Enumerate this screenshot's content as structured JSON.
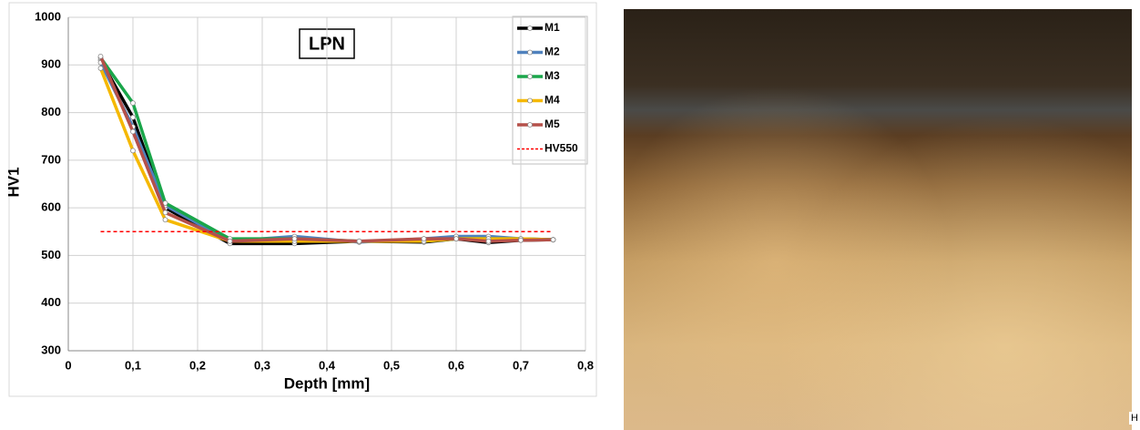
{
  "chart_data": {
    "type": "line",
    "title": "LPN",
    "x_label": "Depth [mm]",
    "y_label": "HV1",
    "x": [
      0.05,
      0.1,
      0.15,
      0.25,
      0.35,
      0.45,
      0.55,
      0.6,
      0.65,
      0.7,
      0.75
    ],
    "series": [
      {
        "name": "M1",
        "color": "#000000",
        "values": [
          910,
          790,
          600,
          525,
          525,
          530,
          528,
          535,
          527,
          532,
          533
        ]
      },
      {
        "name": "M2",
        "color": "#4f81bd",
        "values": [
          905,
          770,
          605,
          530,
          540,
          528,
          535,
          540,
          540,
          535,
          533
        ]
      },
      {
        "name": "M3",
        "color": "#1aa64a",
        "values": [
          915,
          820,
          610,
          535,
          535,
          530,
          530,
          535,
          535,
          535,
          533
        ]
      },
      {
        "name": "M4",
        "color": "#f5b800",
        "values": [
          893,
          720,
          575,
          530,
          530,
          530,
          530,
          535,
          535,
          535,
          533
        ]
      },
      {
        "name": "M5",
        "color": "#b5504a",
        "values": [
          918,
          760,
          590,
          530,
          535,
          530,
          535,
          535,
          530,
          532,
          533
        ]
      },
      {
        "name": "HV550",
        "color": "#ff0000",
        "dashed": true,
        "values": [
          550,
          550,
          550,
          550,
          550,
          550,
          550,
          550,
          550,
          550,
          550
        ]
      }
    ],
    "xlim": [
      0,
      0.8
    ],
    "xticks": [
      0,
      {
        "value": 0.1,
        "label": "0,1"
      },
      {
        "value": 0.2,
        "label": "0,2"
      },
      {
        "value": 0.3,
        "label": "0,3"
      },
      {
        "value": 0.4,
        "label": "0,4"
      },
      {
        "value": 0.5,
        "label": "0,5"
      },
      {
        "value": 0.6,
        "label": "0,6"
      },
      {
        "value": 0.7,
        "label": "0,7"
      },
      {
        "value": 0.8,
        "label": "0,8"
      }
    ],
    "ylim": [
      300,
      1000
    ],
    "yticks": [
      300,
      400,
      500,
      600,
      700,
      800,
      900,
      1000
    ],
    "grid": true,
    "legend": "top-right"
  },
  "micrograph": {
    "corner_label": "H"
  }
}
